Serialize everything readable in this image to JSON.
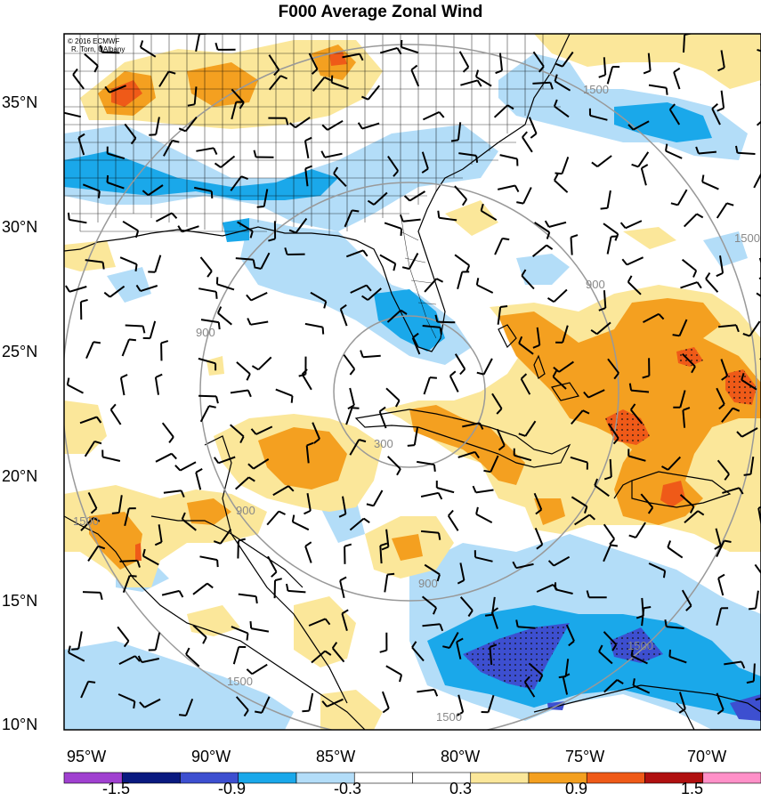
{
  "title": "F000 Average Zonal Wind",
  "credit": {
    "line1": "© 2016 ECMWF",
    "line2": "R. Torn, UAlbany"
  },
  "latitudes": [
    "35°N",
    "30°N",
    "25°N",
    "20°N",
    "15°N",
    "10°N"
  ],
  "longitudes": [
    "95°W",
    "90°W",
    "85°W",
    "80°W",
    "75°W",
    "70°W"
  ],
  "range_ring_labels": [
    "300",
    "900",
    "1500"
  ],
  "colorbar": {
    "labels": [
      "-1.5",
      "-0.9",
      "-0.3",
      "0.3",
      "0.9",
      "1.5"
    ],
    "colors": [
      "#a040d0",
      "#0a1a80",
      "#3d4fd0",
      "#1aa8ea",
      "#b3ddf8",
      "#ffffff",
      "#ffffff",
      "#fbe79a",
      "#f4a020",
      "#ef5a18",
      "#b01010",
      "#ff90c8"
    ]
  },
  "colors": {
    "light_blue": "#b3ddf8",
    "mid_blue": "#1aa8ea",
    "dark_blue": "#3d4fd0",
    "light_yellow": "#fbe79a",
    "orange": "#f4a020",
    "red_orange": "#ef5a18",
    "ring": "#999999"
  }
}
